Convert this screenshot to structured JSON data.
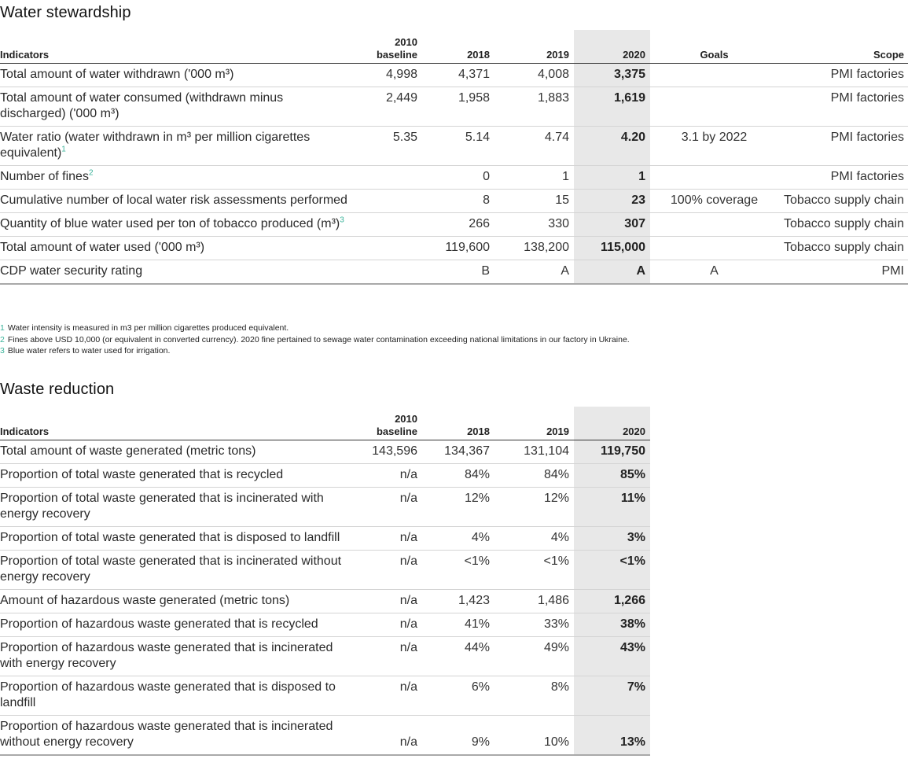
{
  "water": {
    "title": "Water stewardship",
    "headers": {
      "indicators": "Indicators",
      "baseline_year": "2010",
      "baseline_word": "baseline",
      "y2018": "2018",
      "y2019": "2019",
      "y2020": "2020",
      "goals": "Goals",
      "scope": "Scope"
    },
    "rows": [
      {
        "label": "Total amount of water withdrawn ('000 m³)",
        "sup": "",
        "baseline": "4,998",
        "y2018": "4,371",
        "y2019": "4,008",
        "y2020": "3,375",
        "goals": "",
        "scope": "PMI factories"
      },
      {
        "label": "Total amount of water consumed (withdrawn minus discharged) ('000 m³)",
        "sup": "",
        "baseline": "2,449",
        "y2018": "1,958",
        "y2019": "1,883",
        "y2020": "1,619",
        "goals": "",
        "scope": "PMI factories"
      },
      {
        "label": "Water ratio (water withdrawn in m³ per million cigarettes equivalent)",
        "sup": "1",
        "baseline": "5.35",
        "y2018": "5.14",
        "y2019": "4.74",
        "y2020": "4.20",
        "goals": "3.1 by 2022",
        "scope": "PMI factories"
      },
      {
        "label": "Number of fines",
        "sup": "2",
        "baseline": "",
        "y2018": "0",
        "y2019": "1",
        "y2020": "1",
        "goals": "",
        "scope": "PMI factories"
      },
      {
        "label": "Cumulative number of local water risk assessments performed",
        "sup": "",
        "baseline": "",
        "y2018": "8",
        "y2019": "15",
        "y2020": "23",
        "goals": "100% coverage",
        "scope": "Tobacco supply chain"
      },
      {
        "label": "Quantity of blue water used per ton of tobacco produced (m³)",
        "sup": "3",
        "baseline": "",
        "y2018": "266",
        "y2019": "330",
        "y2020": "307",
        "goals": "",
        "scope": "Tobacco supply chain"
      },
      {
        "label": "Total amount of water used ('000 m³)",
        "sup": "",
        "baseline": "",
        "y2018": "119,600",
        "y2019": "138,200",
        "y2020": "115,000",
        "goals": "",
        "scope": "Tobacco supply chain"
      },
      {
        "label": "CDP water security rating",
        "sup": "",
        "baseline": "",
        "y2018": "B",
        "y2019": "A",
        "y2020": "A",
        "goals": "A",
        "scope": "PMI"
      }
    ],
    "footnotes": [
      {
        "num": "1",
        "text": "Water intensity is measured in m3 per million cigarettes produced equivalent."
      },
      {
        "num": "2",
        "text": "Fines above USD 10,000 (or equivalent in converted currency). 2020 fine pertained to sewage water contamination exceeding national limitations in our factory in Ukraine."
      },
      {
        "num": "3",
        "text": "Blue water refers to water used for irrigation."
      }
    ]
  },
  "waste": {
    "title": "Waste reduction",
    "headers": {
      "indicators": "Indicators",
      "baseline_year": "2010",
      "baseline_word": "baseline",
      "y2018": "2018",
      "y2019": "2019",
      "y2020": "2020"
    },
    "rows": [
      {
        "label": "Total amount of waste generated (metric tons)",
        "baseline": "143,596",
        "y2018": "134,367",
        "y2019": "131,104",
        "y2020": "119,750"
      },
      {
        "label": "Proportion of total waste generated that is recycled",
        "baseline": "n/a",
        "y2018": "84%",
        "y2019": "84%",
        "y2020": "85%"
      },
      {
        "label": "Proportion of total waste generated that is incinerated with energy recovery",
        "baseline": "n/a",
        "y2018": "12%",
        "y2019": "12%",
        "y2020": "11%"
      },
      {
        "label": "Proportion of total waste generated that is disposed to landfill",
        "baseline": "n/a",
        "y2018": "4%",
        "y2019": "4%",
        "y2020": "3%"
      },
      {
        "label": "Proportion of total waste generated that is incinerated without energy recovery",
        "baseline": "n/a",
        "y2018": "<1%",
        "y2019": "<1%",
        "y2020": "<1%"
      },
      {
        "label": "Amount of hazardous waste generated (metric tons)",
        "baseline": "n/a",
        "y2018": "1,423",
        "y2019": "1,486",
        "y2020": "1,266"
      },
      {
        "label": "Proportion of hazardous waste generated that is recycled",
        "baseline": "n/a",
        "y2018": "41%",
        "y2019": "33%",
        "y2020": "38%"
      },
      {
        "label": "Proportion of hazardous waste generated that is incinerated with energy recovery",
        "baseline": "n/a",
        "y2018": "44%",
        "y2019": "49%",
        "y2020": "43%"
      },
      {
        "label": "Proportion of hazardous waste generated that is disposed to landfill",
        "baseline": "n/a",
        "y2018": "6%",
        "y2019": "8%",
        "y2020": "7%"
      },
      {
        "label": "Proportion of hazardous waste generated that is incinerated without energy recovery",
        "baseline": "n/a",
        "y2018": "9%",
        "y2019": "10%",
        "y2020": "13%"
      }
    ]
  },
  "colors": {
    "highlight_column": "#e8e8e8",
    "footnote_accent": "#3ab39a"
  }
}
